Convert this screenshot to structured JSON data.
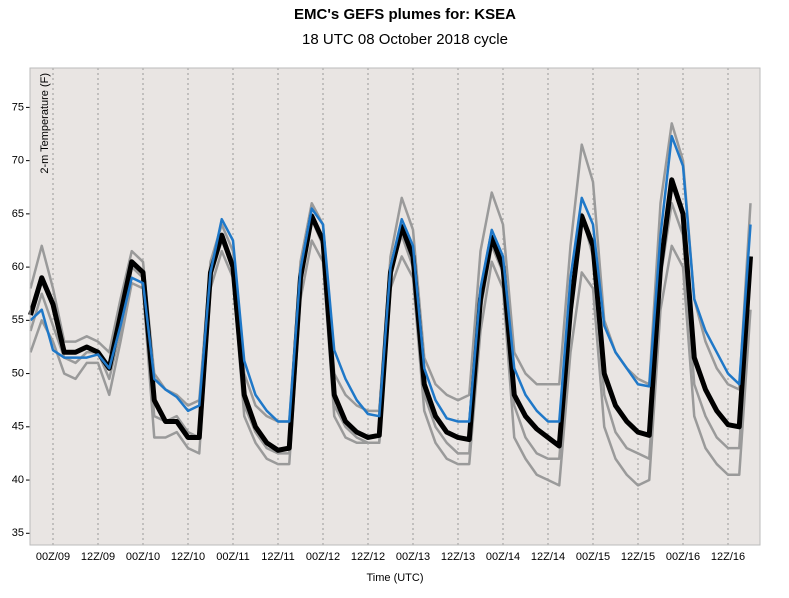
{
  "chart_data": {
    "type": "line",
    "title": "EMC's GEFS plumes for: KSEA",
    "subtitle": "18 UTC 08 October 2018 cycle",
    "x_label": "Time (UTC)",
    "y_label": "2-m Temperature (F)",
    "categories": [
      null,
      null,
      "00Z/09",
      null,
      null,
      null,
      "12Z/09",
      null,
      null,
      null,
      "00Z/10",
      null,
      null,
      null,
      "12Z/10",
      null,
      null,
      null,
      "00Z/11",
      null,
      null,
      null,
      "12Z/11",
      null,
      null,
      null,
      "00Z/12",
      null,
      null,
      null,
      "12Z/12",
      null,
      null,
      null,
      "00Z/13",
      null,
      null,
      null,
      "12Z/13",
      null,
      null,
      null,
      "00Z/14",
      null,
      null,
      null,
      "12Z/14",
      null,
      null,
      null,
      "00Z/15",
      null,
      null,
      null,
      "12Z/15",
      null,
      null,
      null,
      "00Z/16",
      null,
      null,
      null,
      "12Z/16",
      null,
      null
    ],
    "series": [
      {
        "color": "#9a9a9a",
        "values": [
          58,
          62,
          58,
          53,
          53,
          53.5,
          53,
          52,
          57,
          61.5,
          60.5,
          50,
          48.5,
          48,
          47,
          47.5,
          60.5,
          64,
          61.5,
          50,
          47,
          46,
          45.5,
          45.5,
          60.5,
          66,
          64,
          50,
          48,
          47,
          46.5,
          46.5,
          61,
          66.5,
          63.5,
          51.5,
          49,
          48,
          47.5,
          48,
          61.5,
          67,
          64,
          52,
          50,
          49,
          49,
          49,
          62,
          71.5,
          68,
          55,
          52,
          50.5,
          49.5,
          49,
          66,
          73.5,
          70,
          57,
          53,
          50.5,
          49,
          48.5,
          66
        ]
      },
      {
        "color": "#9a9a9a",
        "values": [
          52,
          55,
          53,
          50,
          49.5,
          51,
          51,
          48,
          53,
          58.5,
          58,
          44,
          44,
          44.5,
          43,
          42.5,
          58,
          61.5,
          59,
          46,
          43.5,
          42,
          41.5,
          41.5,
          57,
          62.5,
          60.5,
          46,
          44,
          43.5,
          43.5,
          43.5,
          58,
          61,
          59,
          46.5,
          43.5,
          42,
          41.5,
          41.5,
          54,
          60.5,
          58,
          44,
          42,
          40.5,
          40,
          39.5,
          52,
          59.5,
          58,
          45,
          42,
          40.5,
          39.5,
          40,
          56,
          62,
          60,
          46,
          43,
          41.5,
          40.5,
          40.5,
          56
        ]
      },
      {
        "color": "#9a9a9a",
        "values": [
          54,
          57.5,
          54.5,
          51.5,
          51,
          52,
          52,
          49.5,
          54,
          60,
          59,
          46,
          45.5,
          46,
          44.5,
          44,
          59,
          62.5,
          60,
          47,
          44.5,
          43,
          42.5,
          42.5,
          59,
          64.5,
          62,
          47,
          45,
          44,
          43.5,
          43.5,
          59.5,
          63,
          60,
          48,
          45,
          43.5,
          42.5,
          42.5,
          56,
          62,
          59.5,
          47,
          44,
          42.5,
          42,
          42,
          55,
          65,
          61,
          48,
          44.5,
          43,
          42.5,
          42,
          59,
          66,
          63,
          49,
          46,
          44,
          43,
          43,
          60
        ]
      },
      {
        "color": "#000000",
        "values": [
          55.5,
          59,
          56.5,
          52,
          52,
          52.5,
          52,
          50.5,
          55.5,
          60.5,
          59.5,
          47.5,
          45.5,
          45.5,
          44,
          44,
          59.5,
          63,
          60,
          48,
          45,
          43.5,
          42.8,
          43,
          59,
          64.8,
          62.5,
          48,
          45.5,
          44.5,
          44,
          44.2,
          59.5,
          63.8,
          61,
          49,
          46,
          44.5,
          44,
          43.8,
          57,
          62.8,
          60,
          48,
          46,
          44.8,
          44,
          43.2,
          56,
          64.8,
          62,
          50,
          47,
          45.5,
          44.5,
          44.2,
          60,
          68.2,
          65,
          51.5,
          48.5,
          46.5,
          45.2,
          45,
          61
        ]
      },
      {
        "color": "#1f78c8",
        "values": [
          55,
          56,
          52.2,
          51.5,
          51.5,
          51.5,
          51.8,
          50.5,
          54.5,
          59,
          58.5,
          49.5,
          48.5,
          47.8,
          46.5,
          47,
          59.5,
          64.5,
          62.5,
          51.2,
          48,
          46.5,
          45.5,
          45.5,
          59.8,
          65.5,
          64,
          52.2,
          49.5,
          47.5,
          46.2,
          46,
          60,
          64.5,
          62,
          50.5,
          47.5,
          45.8,
          45.5,
          45.5,
          58,
          63.5,
          61,
          50.5,
          48,
          46.5,
          45.5,
          45.5,
          59,
          66.5,
          64,
          54.5,
          52,
          50.5,
          49,
          48.8,
          63,
          72.3,
          69.5,
          57,
          54,
          52,
          50,
          49,
          64
        ]
      }
    ],
    "ylim": [
      33.9,
      78.7
    ],
    "yticks": [
      35,
      40,
      45,
      50,
      55,
      60,
      65,
      70,
      75
    ]
  }
}
